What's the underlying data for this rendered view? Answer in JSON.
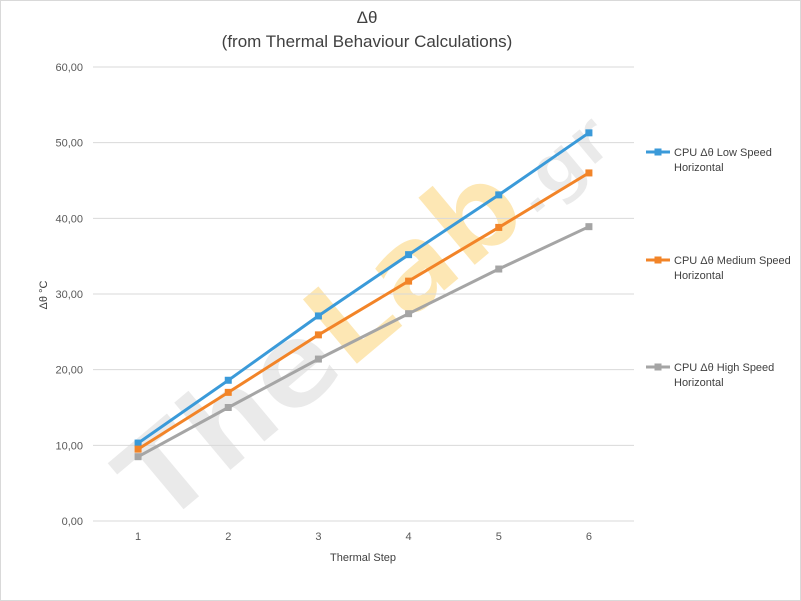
{
  "chart_data": {
    "type": "line",
    "title": "Δθ",
    "subtitle": "(from Thermal Behaviour Calculations)",
    "xlabel": "Thermal Step",
    "ylabel": "Δθ °C",
    "categories": [
      "1",
      "2",
      "3",
      "4",
      "5",
      "6"
    ],
    "ylim": [
      0,
      60
    ],
    "yticks": [
      "0,00",
      "10,00",
      "20,00",
      "30,00",
      "40,00",
      "50,00",
      "60,00"
    ],
    "grid": true,
    "legend_position": "right",
    "series": [
      {
        "name": "CPU Δθ Low Speed Horizontal",
        "legend_lines": [
          "CPU Δθ Low Speed",
          "Horizontal"
        ],
        "color": "#3a9ad9",
        "values": [
          10.3,
          18.6,
          27.1,
          35.2,
          43.1,
          51.3
        ]
      },
      {
        "name": "CPU Δθ Medium Speed Horizontal",
        "legend_lines": [
          "CPU Δθ Medium Speed",
          "Horizontal"
        ],
        "color": "#f28428",
        "values": [
          9.5,
          17.0,
          24.6,
          31.7,
          38.8,
          46.0
        ]
      },
      {
        "name": "CPU Δθ High Speed Horizontal",
        "legend_lines": [
          "CPU Δθ High Speed",
          "Horizontal"
        ],
        "color": "#a5a5a5",
        "values": [
          8.5,
          15.0,
          21.4,
          27.4,
          33.3,
          38.9
        ]
      }
    ]
  },
  "watermark": {
    "text_a": "The",
    "text_b": "Lab",
    "text_c": ".gr",
    "color_a": "#e8e8e8",
    "color_b": "#fde5ac"
  }
}
